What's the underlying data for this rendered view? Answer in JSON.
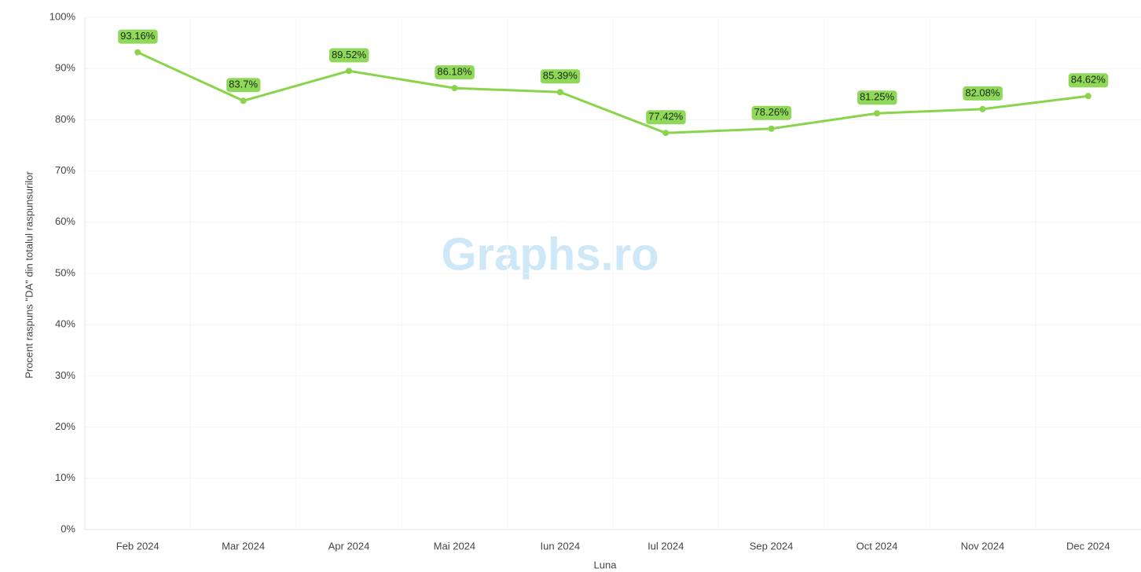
{
  "chart_data": {
    "type": "line",
    "x_label": "Luna",
    "y_label": "Procent raspuns \"DA\" din totalul raspunsurilor",
    "watermark": "Graphs.ro",
    "categories": [
      "Feb 2024",
      "Mar 2024",
      "Apr 2024",
      "Mai 2024",
      "Iun 2024",
      "Iul 2024",
      "Sep 2024",
      "Oct 2024",
      "Nov 2024",
      "Dec 2024"
    ],
    "series": [
      {
        "name": "Procent DA",
        "color": "#8ad44c",
        "values": [
          93.16,
          83.7,
          89.52,
          86.18,
          85.39,
          77.42,
          78.26,
          81.25,
          82.08,
          84.62
        ],
        "value_labels": [
          "93.16%",
          "83.7%",
          "89.52%",
          "86.18%",
          "85.39%",
          "77.42%",
          "78.26%",
          "81.25%",
          "82.08%",
          "84.62%"
        ]
      }
    ],
    "ylim": [
      0,
      100
    ],
    "yticks": [
      {
        "value": 0,
        "label": "0%"
      },
      {
        "value": 10,
        "label": "10%"
      },
      {
        "value": 20,
        "label": "20%"
      },
      {
        "value": 30,
        "label": "30%"
      },
      {
        "value": 40,
        "label": "40%"
      },
      {
        "value": 50,
        "label": "50%"
      },
      {
        "value": 60,
        "label": "60%"
      },
      {
        "value": 70,
        "label": "70%"
      },
      {
        "value": 80,
        "label": "80%"
      },
      {
        "value": 90,
        "label": "90%"
      },
      {
        "value": 100,
        "label": "100%"
      }
    ],
    "grid": true
  }
}
